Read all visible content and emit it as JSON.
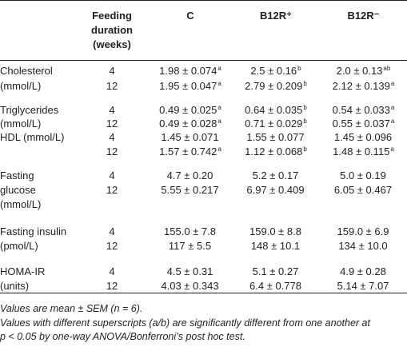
{
  "header": {
    "col_duration": [
      "Feeding",
      "duration",
      "(weeks)"
    ],
    "col_c": "C",
    "col_b12r_plus": "B12R⁺",
    "col_b12r_minus": "B12R⁻"
  },
  "groups": [
    {
      "label_lines": [
        "Cholesterol",
        "(mmol/L)"
      ],
      "rows": [
        {
          "duration": "4",
          "c": {
            "v": "1.98 ± 0.074",
            "s": "a"
          },
          "bp": {
            "v": "2.5 ± 0.16",
            "s": "b"
          },
          "bm": {
            "v": "2.0 ± 0.13",
            "s": "ab"
          }
        },
        {
          "duration": "12",
          "c": {
            "v": "1.95 ± 0.047",
            "s": "a"
          },
          "bp": {
            "v": "2.79 ± 0.209",
            "s": "b"
          },
          "bm": {
            "v": "2.12 ± 0.139",
            "s": "a"
          }
        }
      ]
    },
    {
      "label_lines": [
        "Triglycerides",
        "(mmol/L)"
      ],
      "rows": [
        {
          "duration": "4",
          "c": {
            "v": "0.49 ± 0.025",
            "s": "a"
          },
          "bp": {
            "v": "0.64 ± 0.035",
            "s": "b"
          },
          "bm": {
            "v": "0.54 ± 0.033",
            "s": "a"
          }
        },
        {
          "duration": "12",
          "c": {
            "v": "0.49 ± 0.028",
            "s": "a"
          },
          "bp": {
            "v": "0.71 ± 0.029",
            "s": "b"
          },
          "bm": {
            "v": "0.55 ± 0.037",
            "s": "a"
          }
        }
      ]
    },
    {
      "label_lines": [
        "HDL (mmol/L)"
      ],
      "rows": [
        {
          "duration": "4",
          "c": {
            "v": "1.45 ± 0.071",
            "s": ""
          },
          "bp": {
            "v": "1.55 ± 0.077",
            "s": ""
          },
          "bm": {
            "v": "1.45 ± 0.096",
            "s": ""
          }
        },
        {
          "duration": "12",
          "c": {
            "v": "1.57 ± 0.742",
            "s": "a"
          },
          "bp": {
            "v": "1.12 ± 0.068",
            "s": "b"
          },
          "bm": {
            "v": "1.48 ± 0.115",
            "s": "a"
          }
        }
      ]
    },
    {
      "label_lines": [
        "Fasting",
        "glucose",
        "(mmol/L)"
      ],
      "rows": [
        {
          "duration": "4",
          "c": {
            "v": "4.7 ± 0.20",
            "s": ""
          },
          "bp": {
            "v": "5.2 ± 0.17",
            "s": ""
          },
          "bm": {
            "v": "5.0 ± 0.19",
            "s": ""
          }
        },
        {
          "duration": "12",
          "c": {
            "v": "5.55 ± 0.217",
            "s": ""
          },
          "bp": {
            "v": "6.97 ± 0.409",
            "s": ""
          },
          "bm": {
            "v": "6.05 ± 0.467",
            "s": ""
          }
        }
      ]
    },
    {
      "label_lines": [
        "Fasting insulin",
        "(pmol/L)"
      ],
      "rows": [
        {
          "duration": "4",
          "c": {
            "v": "155.0 ± 7.8",
            "s": ""
          },
          "bp": {
            "v": "159.0 ± 8.8",
            "s": ""
          },
          "bm": {
            "v": "159.0 ± 6.9",
            "s": ""
          }
        },
        {
          "duration": "12",
          "c": {
            "v": "117 ± 5.5",
            "s": ""
          },
          "bp": {
            "v": "148 ± 10.1",
            "s": ""
          },
          "bm": {
            "v": "134 ± 10.0",
            "s": ""
          }
        }
      ]
    },
    {
      "label_lines": [
        "HOMA-IR",
        "(units)"
      ],
      "rows": [
        {
          "duration": "4",
          "c": {
            "v": "4.5 ± 0.31",
            "s": ""
          },
          "bp": {
            "v": "5.1 ± 0.27",
            "s": ""
          },
          "bm": {
            "v": "4.9 ± 0.28",
            "s": ""
          }
        },
        {
          "duration": "12",
          "c": {
            "v": "4.03 ± 0.343",
            "s": ""
          },
          "bp": {
            "v": "6.4 ± 0.778",
            "s": ""
          },
          "bm": {
            "v": "5.14 ± 7.07",
            "s": ""
          }
        }
      ]
    }
  ],
  "footnotes": [
    "Values are mean ± SEM (n = 6).",
    "Values with different superscripts (a/b) are significantly different from one another at",
    "p < 0.05 by one-way ANOVA/Bonferroni’s post hoc test."
  ]
}
